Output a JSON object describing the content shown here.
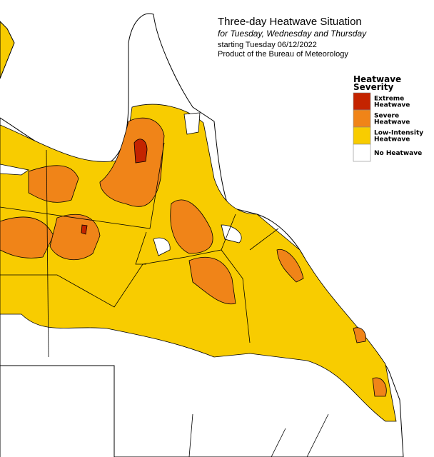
{
  "header": {
    "title": "Three-day Heatwave Situation",
    "subtitle": "for Tuesday, Wednesday and Thursday",
    "date": "starting Tuesday 06/12/2022",
    "credit": "Product of the Bureau of Meteorology"
  },
  "legend": {
    "title": [
      "Heatwave",
      "Severity"
    ],
    "items": [
      {
        "label": [
          "Extreme",
          "Heatwave"
        ],
        "color": "#c42400"
      },
      {
        "label": [
          "Severe",
          "Heatwave"
        ],
        "color": "#f08418"
      },
      {
        "label": [
          "Low-Intensity",
          "Heatwave"
        ],
        "color": "#f8cc00"
      },
      {
        "label": [
          "No Heatwave"
        ],
        "color": "#ffffff"
      }
    ]
  }
}
